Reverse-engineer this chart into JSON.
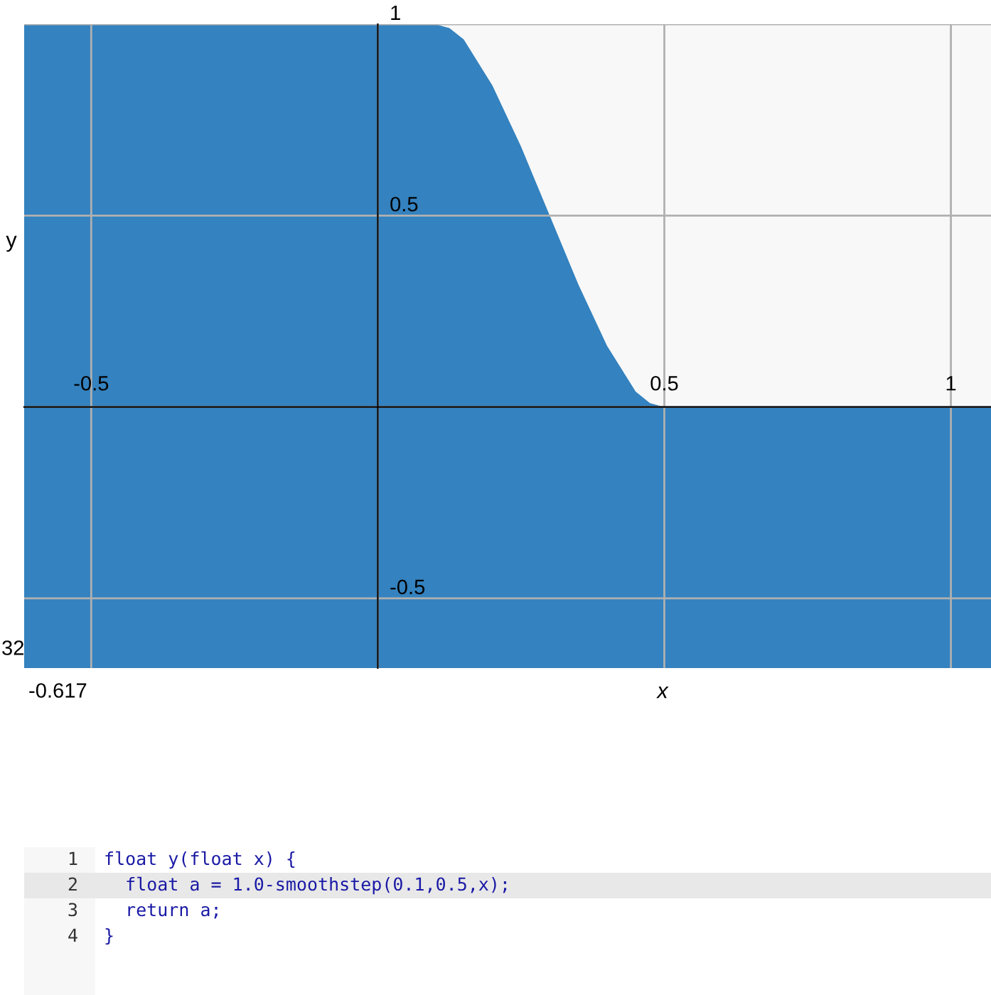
{
  "chart_data": {
    "type": "area",
    "xlabel": "x",
    "ylabel": "y",
    "x": [
      -0.617,
      0.1,
      0.125,
      0.15,
      0.2,
      0.25,
      0.3,
      0.35,
      0.4,
      0.45,
      0.475,
      0.5,
      1.07
    ],
    "series": [
      {
        "color": "#3482bf",
        "values": [
          1,
          1,
          0.99,
          0.96,
          0.84,
          0.68,
          0.5,
          0.32,
          0.16,
          0.04,
          0.01,
          0,
          0
        ]
      }
    ],
    "xlim": [
      -0.617,
      1.07
    ],
    "ylim": [
      -0.682,
      1.0
    ],
    "xticks": [
      -0.5,
      {
        "value": 0,
        "label": null
      },
      0.5,
      1
    ],
    "yticks": [
      -0.5,
      {
        "value": 0,
        "label": null
      },
      0.5,
      1
    ],
    "grid": true,
    "bands": [
      {
        "axis": "y",
        "from": -0.682,
        "to": 0,
        "color": "#3482bf"
      }
    ],
    "annotations": [
      "-0.617",
      "32",
      "1",
      "float y(float x) {",
      "2",
      "  float a = 1.0-smoothstep(0.1,0.5,x);",
      "3",
      "  return a;",
      "4",
      "}"
    ]
  }
}
